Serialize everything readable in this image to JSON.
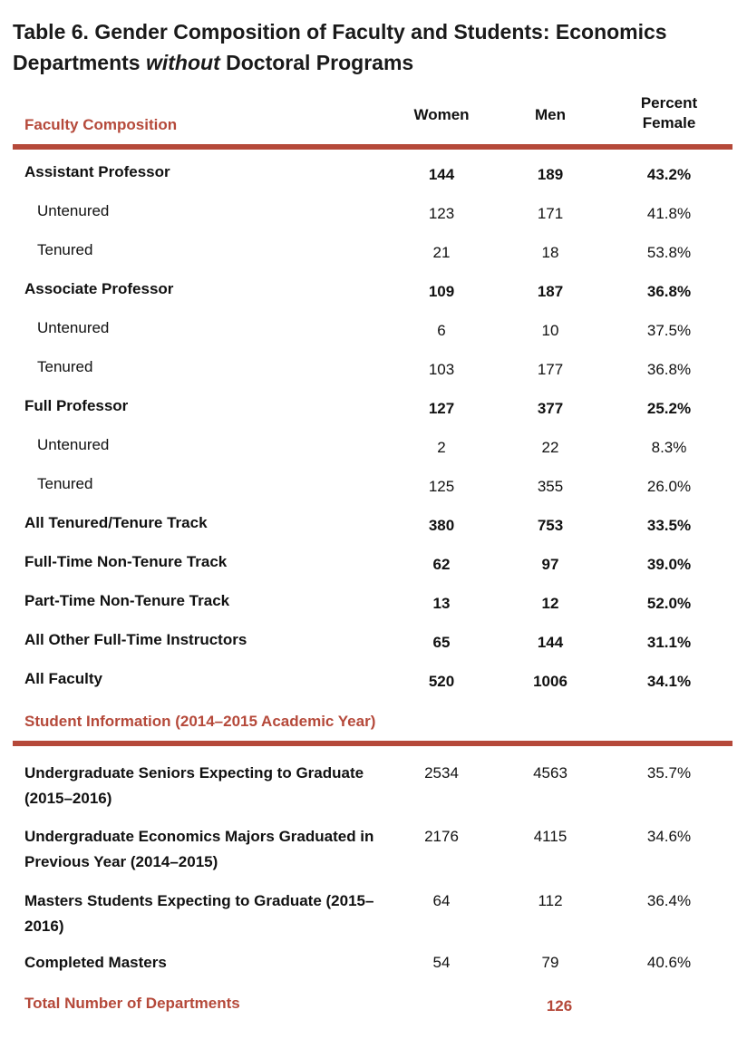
{
  "title": [
    "Table 6. Gender Composition of Faculty and Students: Economics Departments ",
    "without",
    " Doctoral Programs"
  ],
  "faculty": {
    "heading": "Faculty Composition",
    "columns": [
      "Women",
      "Men",
      "Percent Female"
    ],
    "groups": [
      {
        "row": [
          "Assistant Professor",
          "144",
          "189",
          "43.2%"
        ],
        "sub": [
          [
            "Untenured",
            "123",
            "171",
            "41.8%"
          ],
          [
            "Tenured",
            "21",
            "18",
            "53.8%"
          ]
        ]
      },
      {
        "row": [
          "Associate Professor",
          "109",
          "187",
          "36.8%"
        ],
        "sub": [
          [
            "Untenured",
            "6",
            "10",
            "37.5%"
          ],
          [
            "Tenured",
            "103",
            "177",
            "36.8%"
          ]
        ]
      },
      {
        "row": [
          "Full Professor",
          "127",
          "377",
          "25.2%"
        ],
        "sub": [
          [
            "Untenured",
            "2",
            "22",
            "8.3%"
          ],
          [
            "Tenured",
            "125",
            "355",
            "26.0%"
          ]
        ]
      },
      {
        "row": [
          "All Tenured/Tenure Track",
          "380",
          "753",
          "33.5%"
        ]
      },
      {
        "row": [
          "Full-Time Non-Tenure Track",
          "62",
          "97",
          "39.0%"
        ]
      },
      {
        "row": [
          "Part-Time Non-Tenure Track",
          "13",
          "12",
          "52.0%"
        ]
      },
      {
        "row": [
          "All Other Full-Time Instructors",
          "65",
          "144",
          "31.1%"
        ]
      },
      {
        "row": [
          "All Faculty",
          "520",
          "1006",
          "34.1%"
        ]
      }
    ]
  },
  "students": {
    "heading": "Student Information (2014–2015 Academic Year)",
    "rows": [
      [
        "Undergraduate Seniors Expecting to Graduate (2015–2016)",
        "2534",
        "4563",
        "35.7%"
      ],
      [
        "Undergraduate Economics Majors Graduated in Previous Year (2014–2015)",
        "2176",
        "4115",
        "34.6%"
      ],
      [
        "Masters Students Expecting to Graduate (2015–2016)",
        "64",
        "112",
        "36.4%"
      ],
      [
        "Completed Masters",
        "54",
        "79",
        "40.6%"
      ]
    ]
  },
  "total": {
    "label": "Total Number of Departments",
    "value": "126"
  }
}
